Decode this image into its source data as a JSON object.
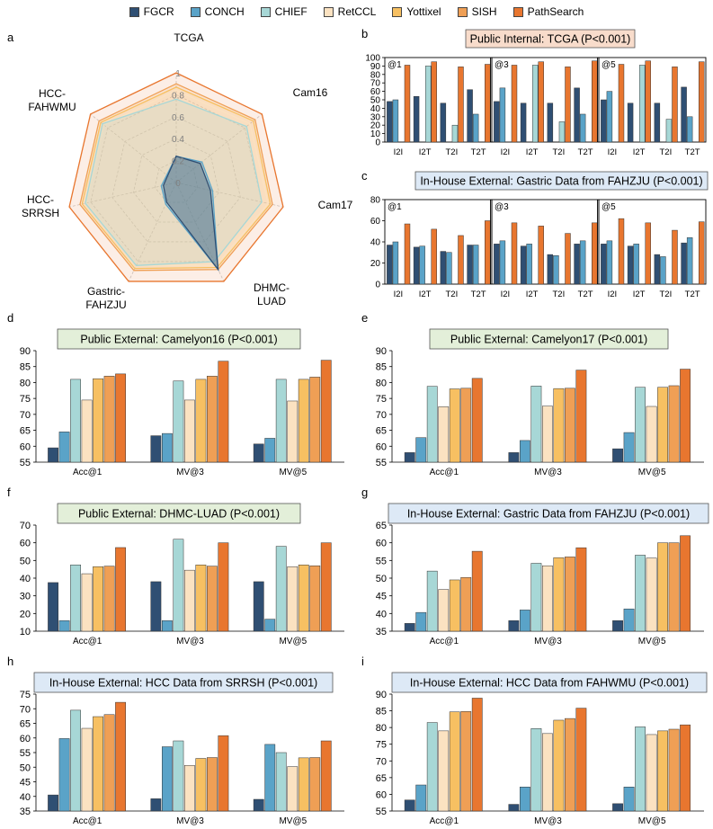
{
  "legend": [
    {
      "name": "FGCR",
      "color": "#2f4f73"
    },
    {
      "name": "CONCH",
      "color": "#5aa3c8"
    },
    {
      "name": "CHIEF",
      "color": "#a7d7d6"
    },
    {
      "name": "RetCCL",
      "color": "#fbe2c1"
    },
    {
      "name": "Yottixel",
      "color": "#f7c062"
    },
    {
      "name": "SISH",
      "color": "#ef9f55"
    },
    {
      "name": "PathSearch",
      "color": "#e8762f"
    }
  ],
  "panel_letters": {
    "a": "a",
    "b": "b",
    "c": "c",
    "d": "d",
    "e": "e",
    "f": "f",
    "g": "g",
    "h": "h",
    "i": "i"
  },
  "radar": {
    "axes": [
      "TCGA",
      "Cam16",
      "Cam17",
      "DHMC-\nLUAD",
      "Gastric-\nFAHZJU",
      "HCC-\nSRRSH",
      "HCC-\nFAHWMU"
    ],
    "ticks": [
      "0",
      "0.2",
      "0.4",
      "0.6",
      "0.8",
      "1"
    ],
    "series": [
      {
        "name": "FGCR",
        "values": [
          0.24,
          0.28,
          0.32,
          0.88,
          0.2,
          0.12,
          0.1
        ]
      },
      {
        "name": "CONCH",
        "values": [
          0.24,
          0.3,
          0.34,
          0.88,
          0.22,
          0.14,
          0.11
        ]
      },
      {
        "name": "CHIEF",
        "values": [
          0.76,
          0.82,
          0.8,
          0.8,
          0.84,
          0.85,
          0.86
        ]
      },
      {
        "name": "RetCCL",
        "values": [
          0.84,
          0.86,
          0.86,
          0.84,
          0.84,
          0.84,
          0.84
        ]
      },
      {
        "name": "Yottixel",
        "values": [
          0.87,
          0.9,
          0.88,
          0.86,
          0.87,
          0.88,
          0.88
        ]
      },
      {
        "name": "SISH",
        "values": [
          0.9,
          0.92,
          0.9,
          0.88,
          0.89,
          0.9,
          0.9
        ]
      },
      {
        "name": "PathSearch",
        "values": [
          1,
          1,
          1,
          1,
          1,
          1,
          1
        ]
      }
    ]
  },
  "chart_data": [
    {
      "id": "b",
      "type": "bar",
      "title": "Public Internal: TCGA (P<0.001)",
      "title_bg": "#f8dccb",
      "ylim": [
        0,
        100
      ],
      "yticks": [
        0,
        10,
        20,
        30,
        40,
        50,
        60,
        70,
        80,
        90,
        100
      ],
      "groups": [
        "@1",
        "@3",
        "@5"
      ],
      "categories": [
        "I2I",
        "I2T",
        "T2I",
        "T2T"
      ],
      "series_names": [
        "FGCR",
        "CONCH",
        "CHIEF",
        "PathSearch"
      ],
      "values": [
        [
          [
            48,
            50,
            0,
            91
          ],
          [
            54,
            0,
            90,
            95
          ],
          [
            46,
            0,
            20,
            89
          ],
          [
            62,
            33,
            0,
            92
          ]
        ],
        [
          [
            48,
            64,
            0,
            91
          ],
          [
            46,
            0,
            91,
            95
          ],
          [
            46,
            0,
            24,
            89
          ],
          [
            64,
            33,
            0,
            96
          ]
        ],
        [
          [
            50,
            60,
            0,
            92
          ],
          [
            46,
            0,
            91,
            96
          ],
          [
            46,
            0,
            27,
            89
          ],
          [
            65,
            30,
            0,
            95
          ]
        ]
      ]
    },
    {
      "id": "c",
      "type": "bar",
      "title": "In-House External: Gastric Data from FAHZJU (P<0.001)",
      "title_bg": "#dde9f6",
      "ylim": [
        0,
        80
      ],
      "yticks": [
        0,
        20,
        40,
        60,
        80
      ],
      "groups": [
        "@1",
        "@3",
        "@5"
      ],
      "categories": [
        "I2I",
        "I2T",
        "T2I",
        "T2T"
      ],
      "series_names": [
        "FGCR",
        "CONCH",
        "CHIEF",
        "PathSearch"
      ],
      "values": [
        [
          [
            37,
            40,
            0,
            57
          ],
          [
            35,
            36,
            0,
            52
          ],
          [
            31,
            30,
            0,
            46
          ],
          [
            37,
            37,
            0,
            60
          ]
        ],
        [
          [
            38,
            41,
            0,
            58
          ],
          [
            36,
            38,
            0,
            55
          ],
          [
            28,
            27,
            0,
            48
          ],
          [
            38,
            41,
            0,
            58
          ]
        ],
        [
          [
            38,
            41,
            0,
            62
          ],
          [
            36,
            38,
            0,
            58
          ],
          [
            28,
            26,
            0,
            51
          ],
          [
            39,
            44,
            0,
            59
          ]
        ]
      ]
    },
    {
      "id": "d",
      "type": "bar",
      "title": "Public External: Camelyon16 (P<0.001)",
      "title_bg": "#e3efd9",
      "ylim": [
        55,
        90
      ],
      "yticks": [
        55,
        60,
        65,
        70,
        75,
        80,
        85,
        90
      ],
      "categories": [
        "Acc@1",
        "MV@3",
        "MV@5"
      ],
      "series": [
        {
          "name": "FGCR",
          "values": [
            59.5,
            63.3,
            60.7
          ]
        },
        {
          "name": "CONCH",
          "values": [
            64.5,
            64,
            62.5
          ]
        },
        {
          "name": "CHIEF",
          "values": [
            81,
            80.5,
            81
          ]
        },
        {
          "name": "RetCCL",
          "values": [
            74.5,
            74.5,
            74.2
          ]
        },
        {
          "name": "Yottixel",
          "values": [
            81.2,
            81,
            81
          ]
        },
        {
          "name": "SISH",
          "values": [
            82,
            82,
            81.7
          ]
        },
        {
          "name": "PathSearch",
          "values": [
            82.7,
            86.7,
            87
          ]
        }
      ]
    },
    {
      "id": "e",
      "type": "bar",
      "title": "Public External: Camelyon17 (P<0.001)",
      "title_bg": "#e3efd9",
      "ylim": [
        55,
        90
      ],
      "yticks": [
        55,
        60,
        65,
        70,
        75,
        80,
        85,
        90
      ],
      "categories": [
        "Acc@1",
        "MV@3",
        "MV@5"
      ],
      "series": [
        {
          "name": "FGCR",
          "values": [
            58,
            58,
            59.2
          ]
        },
        {
          "name": "CONCH",
          "values": [
            62.7,
            61.8,
            64.3
          ]
        },
        {
          "name": "CHIEF",
          "values": [
            78.8,
            78.9,
            78.5
          ]
        },
        {
          "name": "RetCCL",
          "values": [
            72.4,
            72.6,
            72.5
          ]
        },
        {
          "name": "Yottixel",
          "values": [
            78,
            78.1,
            78.5
          ]
        },
        {
          "name": "SISH",
          "values": [
            78.2,
            78.2,
            79
          ]
        },
        {
          "name": "PathSearch",
          "values": [
            81.3,
            83.9,
            84.2
          ]
        }
      ]
    },
    {
      "id": "f",
      "type": "bar",
      "title": "Public External: DHMC-LUAD (P<0.001)",
      "title_bg": "#e3efd9",
      "ylim": [
        10,
        70
      ],
      "yticks": [
        10,
        20,
        30,
        40,
        50,
        60,
        70
      ],
      "categories": [
        "Acc@1",
        "MV@3",
        "MV@5"
      ],
      "series": [
        {
          "name": "FGCR",
          "values": [
            37.5,
            38,
            38
          ]
        },
        {
          "name": "CONCH",
          "values": [
            16,
            16,
            16.8
          ]
        },
        {
          "name": "CHIEF",
          "values": [
            47.5,
            62,
            58
          ]
        },
        {
          "name": "RetCCL",
          "values": [
            42.5,
            44.5,
            46.5
          ]
        },
        {
          "name": "Yottixel",
          "values": [
            46.5,
            47.5,
            47.5
          ]
        },
        {
          "name": "SISH",
          "values": [
            46.8,
            46.8,
            47
          ]
        },
        {
          "name": "PathSearch",
          "values": [
            57.3,
            60,
            60
          ]
        }
      ]
    },
    {
      "id": "g",
      "type": "bar",
      "title": "In-House External: Gastric Data from FAHZJU (P<0.001)",
      "title_bg": "#dde9f6",
      "ylim": [
        35,
        65
      ],
      "yticks": [
        35,
        40,
        45,
        50,
        55,
        60,
        65
      ],
      "categories": [
        "Acc@1",
        "MV@3",
        "MV@5"
      ],
      "series": [
        {
          "name": "FGCR",
          "values": [
            37.2,
            38,
            38
          ]
        },
        {
          "name": "CONCH",
          "values": [
            40.3,
            41,
            41.3
          ]
        },
        {
          "name": "CHIEF",
          "values": [
            52,
            54.2,
            56.5
          ]
        },
        {
          "name": "RetCCL",
          "values": [
            46.8,
            53.5,
            55.7
          ]
        },
        {
          "name": "Yottixel",
          "values": [
            49.5,
            55.8,
            60
          ]
        },
        {
          "name": "SISH",
          "values": [
            50.2,
            56,
            60
          ]
        },
        {
          "name": "PathSearch",
          "values": [
            57.6,
            58.6,
            62
          ]
        }
      ]
    },
    {
      "id": "h",
      "type": "bar",
      "title": "In-House External: HCC Data from SRRSH (P<0.001)",
      "title_bg": "#dde9f6",
      "ylim": [
        35,
        75
      ],
      "yticks": [
        35,
        40,
        45,
        50,
        55,
        60,
        65,
        70,
        75
      ],
      "categories": [
        "Acc@1",
        "MV@3",
        "MV@5"
      ],
      "series": [
        {
          "name": "FGCR",
          "values": [
            40.5,
            39.2,
            39
          ]
        },
        {
          "name": "CONCH",
          "values": [
            59.8,
            57,
            57.8
          ]
        },
        {
          "name": "CHIEF",
          "values": [
            69.5,
            59,
            55
          ]
        },
        {
          "name": "RetCCL",
          "values": [
            63.3,
            50.6,
            50.2
          ]
        },
        {
          "name": "Yottixel",
          "values": [
            67.3,
            53,
            53.2
          ]
        },
        {
          "name": "SISH",
          "values": [
            68,
            53.3,
            53.3
          ]
        },
        {
          "name": "PathSearch",
          "values": [
            72.2,
            60.8,
            59
          ]
        }
      ]
    },
    {
      "id": "i",
      "type": "bar",
      "title": "In-House External: HCC Data from FAHWMU (P<0.001)",
      "title_bg": "#dde9f6",
      "ylim": [
        55,
        90
      ],
      "yticks": [
        55,
        60,
        65,
        70,
        75,
        80,
        85,
        90
      ],
      "categories": [
        "Acc@1",
        "MV@3",
        "MV@5"
      ],
      "series": [
        {
          "name": "FGCR",
          "values": [
            58.3,
            57,
            57.2
          ]
        },
        {
          "name": "CONCH",
          "values": [
            62.8,
            62.2,
            62.2
          ]
        },
        {
          "name": "CHIEF",
          "values": [
            81.5,
            79.7,
            80.2
          ]
        },
        {
          "name": "RetCCL",
          "values": [
            79,
            78.2,
            77.9
          ]
        },
        {
          "name": "Yottixel",
          "values": [
            84.7,
            82.2,
            79
          ]
        },
        {
          "name": "SISH",
          "values": [
            84.8,
            82.7,
            79.5
          ]
        },
        {
          "name": "PathSearch",
          "values": [
            88.8,
            85.8,
            80.8
          ]
        }
      ]
    }
  ]
}
